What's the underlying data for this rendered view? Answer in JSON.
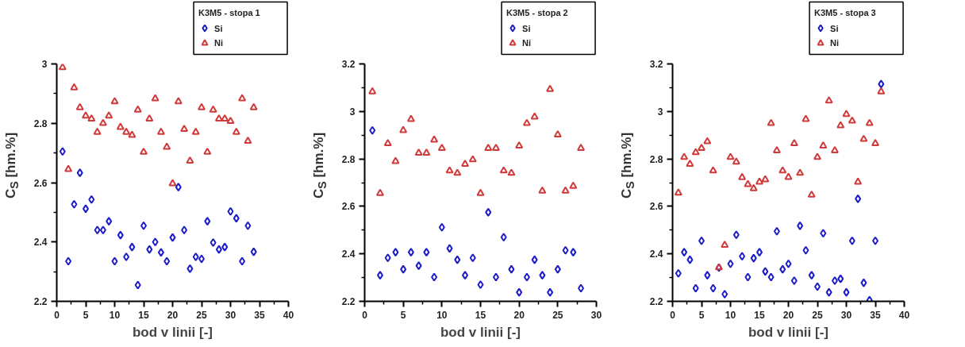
{
  "chart_data": [
    {
      "type": "scatter",
      "xlabel": "bod v linii [-]",
      "ylabel": "C$_{S}$ [hm.%]",
      "legend_title": "K3M5 - stopa 1",
      "legend": "top right",
      "grid": false,
      "xlim": [
        0,
        40
      ],
      "xticks": [
        0,
        5,
        10,
        15,
        20,
        25,
        30,
        35,
        40
      ],
      "ylim": [
        2.2,
        3
      ],
      "yticks": [
        2.2,
        2.4,
        2.6,
        2.8,
        3
      ],
      "x": [
        1,
        2,
        3,
        4,
        5,
        6,
        7,
        8,
        9,
        10,
        11,
        12,
        13,
        14,
        15,
        16,
        17,
        18,
        19,
        20,
        21,
        22,
        23,
        24,
        25,
        26,
        27,
        28,
        29,
        30,
        31,
        32,
        33,
        34
      ],
      "series": [
        {
          "name": "Si",
          "color": "#1c1cc8",
          "marker": "diamond",
          "values": [
            2.705,
            2.335,
            2.527,
            2.633,
            2.512,
            2.543,
            2.44,
            2.44,
            2.47,
            2.335,
            2.423,
            2.35,
            2.383,
            2.255,
            2.455,
            2.375,
            2.4,
            2.365,
            2.335,
            2.415,
            2.585,
            2.44,
            2.31,
            2.35,
            2.343,
            2.47,
            2.398,
            2.375,
            2.383,
            2.503,
            2.48,
            2.335,
            2.455,
            2.367
          ]
        },
        {
          "name": "Ni",
          "color": "#d03a3a",
          "marker": "triangle",
          "values": [
            2.988,
            2.645,
            2.92,
            2.853,
            2.825,
            2.815,
            2.77,
            2.8,
            2.825,
            2.873,
            2.787,
            2.77,
            2.76,
            2.845,
            2.703,
            2.815,
            2.883,
            2.77,
            2.72,
            2.597,
            2.873,
            2.78,
            2.673,
            2.77,
            2.853,
            2.703,
            2.845,
            2.815,
            2.815,
            2.807,
            2.77,
            2.883,
            2.74,
            2.853
          ]
        }
      ]
    },
    {
      "type": "scatter",
      "xlabel": "bod v linii [-]",
      "ylabel": "C$_{S}$ [hm.%]",
      "legend_title": "K3M5 - stopa 2",
      "legend": "top right",
      "grid": false,
      "xlim": [
        0,
        30
      ],
      "xticks": [
        0,
        5,
        10,
        15,
        20,
        25,
        30
      ],
      "ylim": [
        2.2,
        3.2
      ],
      "yticks": [
        2.2,
        2.4,
        2.6,
        2.8,
        3,
        3.2
      ],
      "x": [
        1,
        2,
        3,
        4,
        5,
        6,
        7,
        8,
        9,
        10,
        11,
        12,
        13,
        14,
        15,
        16,
        17,
        18,
        19,
        20,
        21,
        22,
        23,
        24,
        25,
        26,
        27,
        28
      ],
      "series": [
        {
          "name": "Si",
          "color": "#1c1cc8",
          "marker": "diamond",
          "values": [
            2.92,
            2.31,
            2.383,
            2.407,
            2.335,
            2.407,
            2.35,
            2.407,
            2.302,
            2.512,
            2.423,
            2.375,
            2.31,
            2.383,
            2.27,
            2.575,
            2.302,
            2.47,
            2.335,
            2.238,
            2.302,
            2.375,
            2.31,
            2.238,
            2.335,
            2.415,
            2.407,
            2.255
          ]
        },
        {
          "name": "Ni",
          "color": "#d03a3a",
          "marker": "triangle",
          "values": [
            3.083,
            2.655,
            2.865,
            2.79,
            2.92,
            2.967,
            2.825,
            2.825,
            2.88,
            2.845,
            2.75,
            2.74,
            2.778,
            2.797,
            2.655,
            2.845,
            2.845,
            2.75,
            2.74,
            2.855,
            2.95,
            2.977,
            2.665,
            3.093,
            2.902,
            2.665,
            2.685,
            2.845
          ]
        }
      ]
    },
    {
      "type": "scatter",
      "xlabel": "bod v linii [-]",
      "ylabel": "C$_{S}$ [hm.%]",
      "legend_title": "K3M5 - stopa 3",
      "legend": "top right",
      "grid": false,
      "xlim": [
        0,
        40
      ],
      "xticks": [
        0,
        5,
        10,
        15,
        20,
        25,
        30,
        35,
        40
      ],
      "ylim": [
        2.2,
        3.2
      ],
      "yticks": [
        2.2,
        2.4,
        2.6,
        2.8,
        3,
        3.2
      ],
      "x": [
        1,
        2,
        3,
        4,
        5,
        6,
        7,
        8,
        9,
        10,
        11,
        12,
        13,
        14,
        15,
        16,
        17,
        18,
        19,
        20,
        21,
        22,
        23,
        24,
        25,
        26,
        27,
        28,
        29,
        30,
        31,
        32,
        33,
        34,
        35,
        36
      ],
      "series": [
        {
          "name": "Si",
          "color": "#1c1cc8",
          "marker": "diamond",
          "values": [
            2.318,
            2.407,
            2.375,
            2.255,
            2.455,
            2.31,
            2.255,
            2.342,
            2.23,
            2.358,
            2.48,
            2.39,
            2.302,
            2.382,
            2.407,
            2.326,
            2.302,
            2.495,
            2.335,
            2.358,
            2.287,
            2.518,
            2.415,
            2.31,
            2.262,
            2.487,
            2.238,
            2.287,
            2.295,
            2.238,
            2.455,
            2.632,
            2.278,
            2.205,
            2.455,
            3.115
          ]
        },
        {
          "name": "Ni",
          "color": "#d03a3a",
          "marker": "triangle",
          "values": [
            2.657,
            2.807,
            2.778,
            2.827,
            2.845,
            2.873,
            2.75,
            2.342,
            2.437,
            2.807,
            2.787,
            2.722,
            2.693,
            2.675,
            2.703,
            2.713,
            2.95,
            2.835,
            2.75,
            2.723,
            2.865,
            2.74,
            2.967,
            2.648,
            2.807,
            2.855,
            3.045,
            2.835,
            2.94,
            2.988,
            2.96,
            2.703,
            2.883,
            2.95,
            2.865,
            3.083
          ]
        }
      ]
    }
  ]
}
